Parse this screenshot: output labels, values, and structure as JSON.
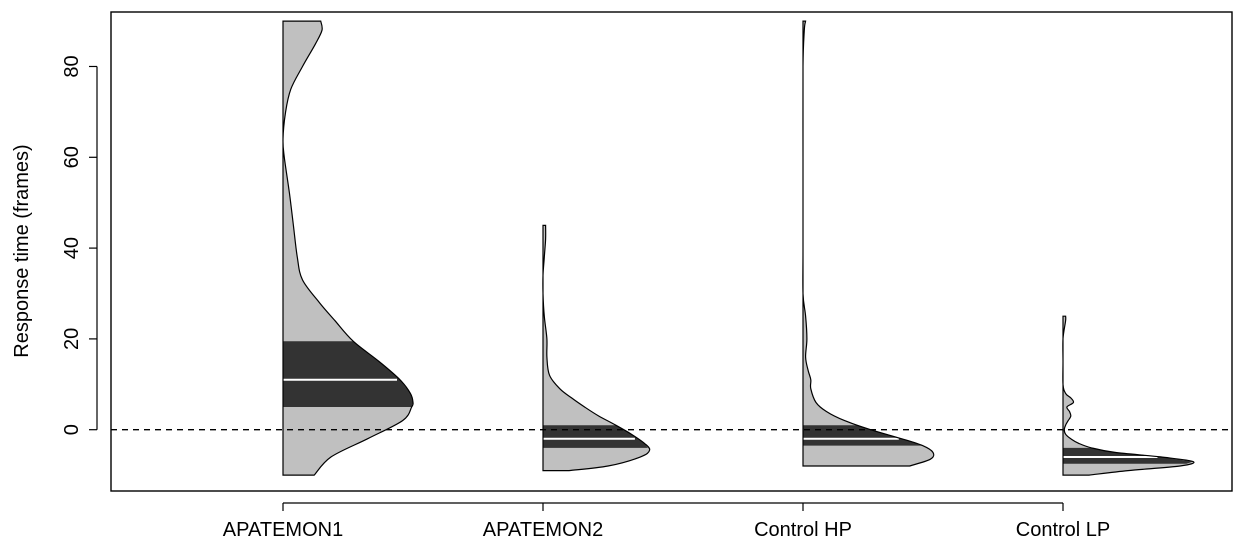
{
  "chart_data": {
    "type": "half-violin",
    "title": "",
    "xlabel": "",
    "ylabel": "Response time (frames)",
    "ylim": [
      -13.5,
      92
    ],
    "yticks": [
      0,
      20,
      40,
      60,
      80
    ],
    "reference_line": {
      "y": 0,
      "style": "dashed"
    },
    "grid": false,
    "legend": "none",
    "colors": {
      "fill": "#c0c0c0",
      "iqr": "#333333",
      "median": "#ffffff",
      "stroke": "#000000"
    },
    "categories": [
      "APATEMON1",
      "APATEMON2",
      "Control HP",
      "Control LP"
    ],
    "series": [
      {
        "name": "APATEMON1",
        "min": -10,
        "max": 90,
        "q1": 5,
        "median": 11,
        "q3": 19.5,
        "density": [
          [
            -10,
            0.24
          ],
          [
            -6,
            0.37
          ],
          [
            -2,
            0.65
          ],
          [
            2,
            0.92
          ],
          [
            5,
            0.99
          ],
          [
            6,
            1.0
          ],
          [
            8,
            0.98
          ],
          [
            11,
            0.9
          ],
          [
            15,
            0.74
          ],
          [
            19.5,
            0.54
          ],
          [
            24,
            0.4
          ],
          [
            28,
            0.28
          ],
          [
            33,
            0.15
          ],
          [
            38,
            0.11
          ],
          [
            45,
            0.08
          ],
          [
            52,
            0.05
          ],
          [
            60,
            0.01
          ],
          [
            64,
            0.0
          ],
          [
            70,
            0.02
          ],
          [
            75,
            0.06
          ],
          [
            80,
            0.15
          ],
          [
            85,
            0.25
          ],
          [
            88,
            0.3
          ],
          [
            90,
            0.29
          ]
        ]
      },
      {
        "name": "APATEMON2",
        "min": -9,
        "max": 45,
        "q1": -4,
        "median": -2,
        "q3": 1,
        "density": [
          [
            -9,
            0.2
          ],
          [
            -8,
            0.5
          ],
          [
            -6,
            0.75
          ],
          [
            -4.5,
            0.82
          ],
          [
            -3,
            0.78
          ],
          [
            -1,
            0.68
          ],
          [
            1,
            0.56
          ],
          [
            3,
            0.43
          ],
          [
            5,
            0.32
          ],
          [
            7,
            0.22
          ],
          [
            9,
            0.13
          ],
          [
            12,
            0.05
          ],
          [
            16,
            0.03
          ],
          [
            20,
            0.03
          ],
          [
            25,
            0.01
          ],
          [
            30,
            0.0
          ],
          [
            34,
            0.0
          ],
          [
            38,
            0.01
          ],
          [
            42,
            0.02
          ],
          [
            45,
            0.02
          ]
        ]
      },
      {
        "name": "Control HP",
        "min": -8,
        "max": 90,
        "q1": -3.5,
        "median": -2,
        "q3": 1,
        "density": [
          [
            -8,
            0.82
          ],
          [
            -6.5,
            0.98
          ],
          [
            -5,
            1.0
          ],
          [
            -3.5,
            0.92
          ],
          [
            -2,
            0.76
          ],
          [
            0,
            0.52
          ],
          [
            2,
            0.32
          ],
          [
            4,
            0.18
          ],
          [
            6,
            0.1
          ],
          [
            9,
            0.06
          ],
          [
            11,
            0.06
          ],
          [
            13,
            0.04
          ],
          [
            16,
            0.02
          ],
          [
            20,
            0.03
          ],
          [
            25,
            0.02
          ],
          [
            30,
            0.0
          ],
          [
            40,
            0.0
          ],
          [
            60,
            0.0
          ],
          [
            80,
            0.0
          ],
          [
            88,
            0.01
          ],
          [
            90,
            0.02
          ]
        ]
      },
      {
        "name": "Control LP",
        "min": -10,
        "max": 25,
        "q1": -7.5,
        "median": -6,
        "q3": -4,
        "density": [
          [
            -10,
            0.2
          ],
          [
            -9,
            0.5
          ],
          [
            -8,
            0.9
          ],
          [
            -7,
            1.0
          ],
          [
            -6,
            0.75
          ],
          [
            -5,
            0.4
          ],
          [
            -4,
            0.22
          ],
          [
            -3,
            0.12
          ],
          [
            -2,
            0.06
          ],
          [
            -1,
            0.02
          ],
          [
            0,
            0.01
          ],
          [
            1,
            0.02
          ],
          [
            2,
            0.04
          ],
          [
            3,
            0.06
          ],
          [
            4,
            0.05
          ],
          [
            5,
            0.03
          ],
          [
            6,
            0.08
          ],
          [
            7,
            0.06
          ],
          [
            8,
            0.02
          ],
          [
            10,
            0.0
          ],
          [
            15,
            0.0
          ],
          [
            20,
            0.0
          ],
          [
            24,
            0.02
          ],
          [
            25,
            0.02
          ]
        ]
      }
    ]
  }
}
